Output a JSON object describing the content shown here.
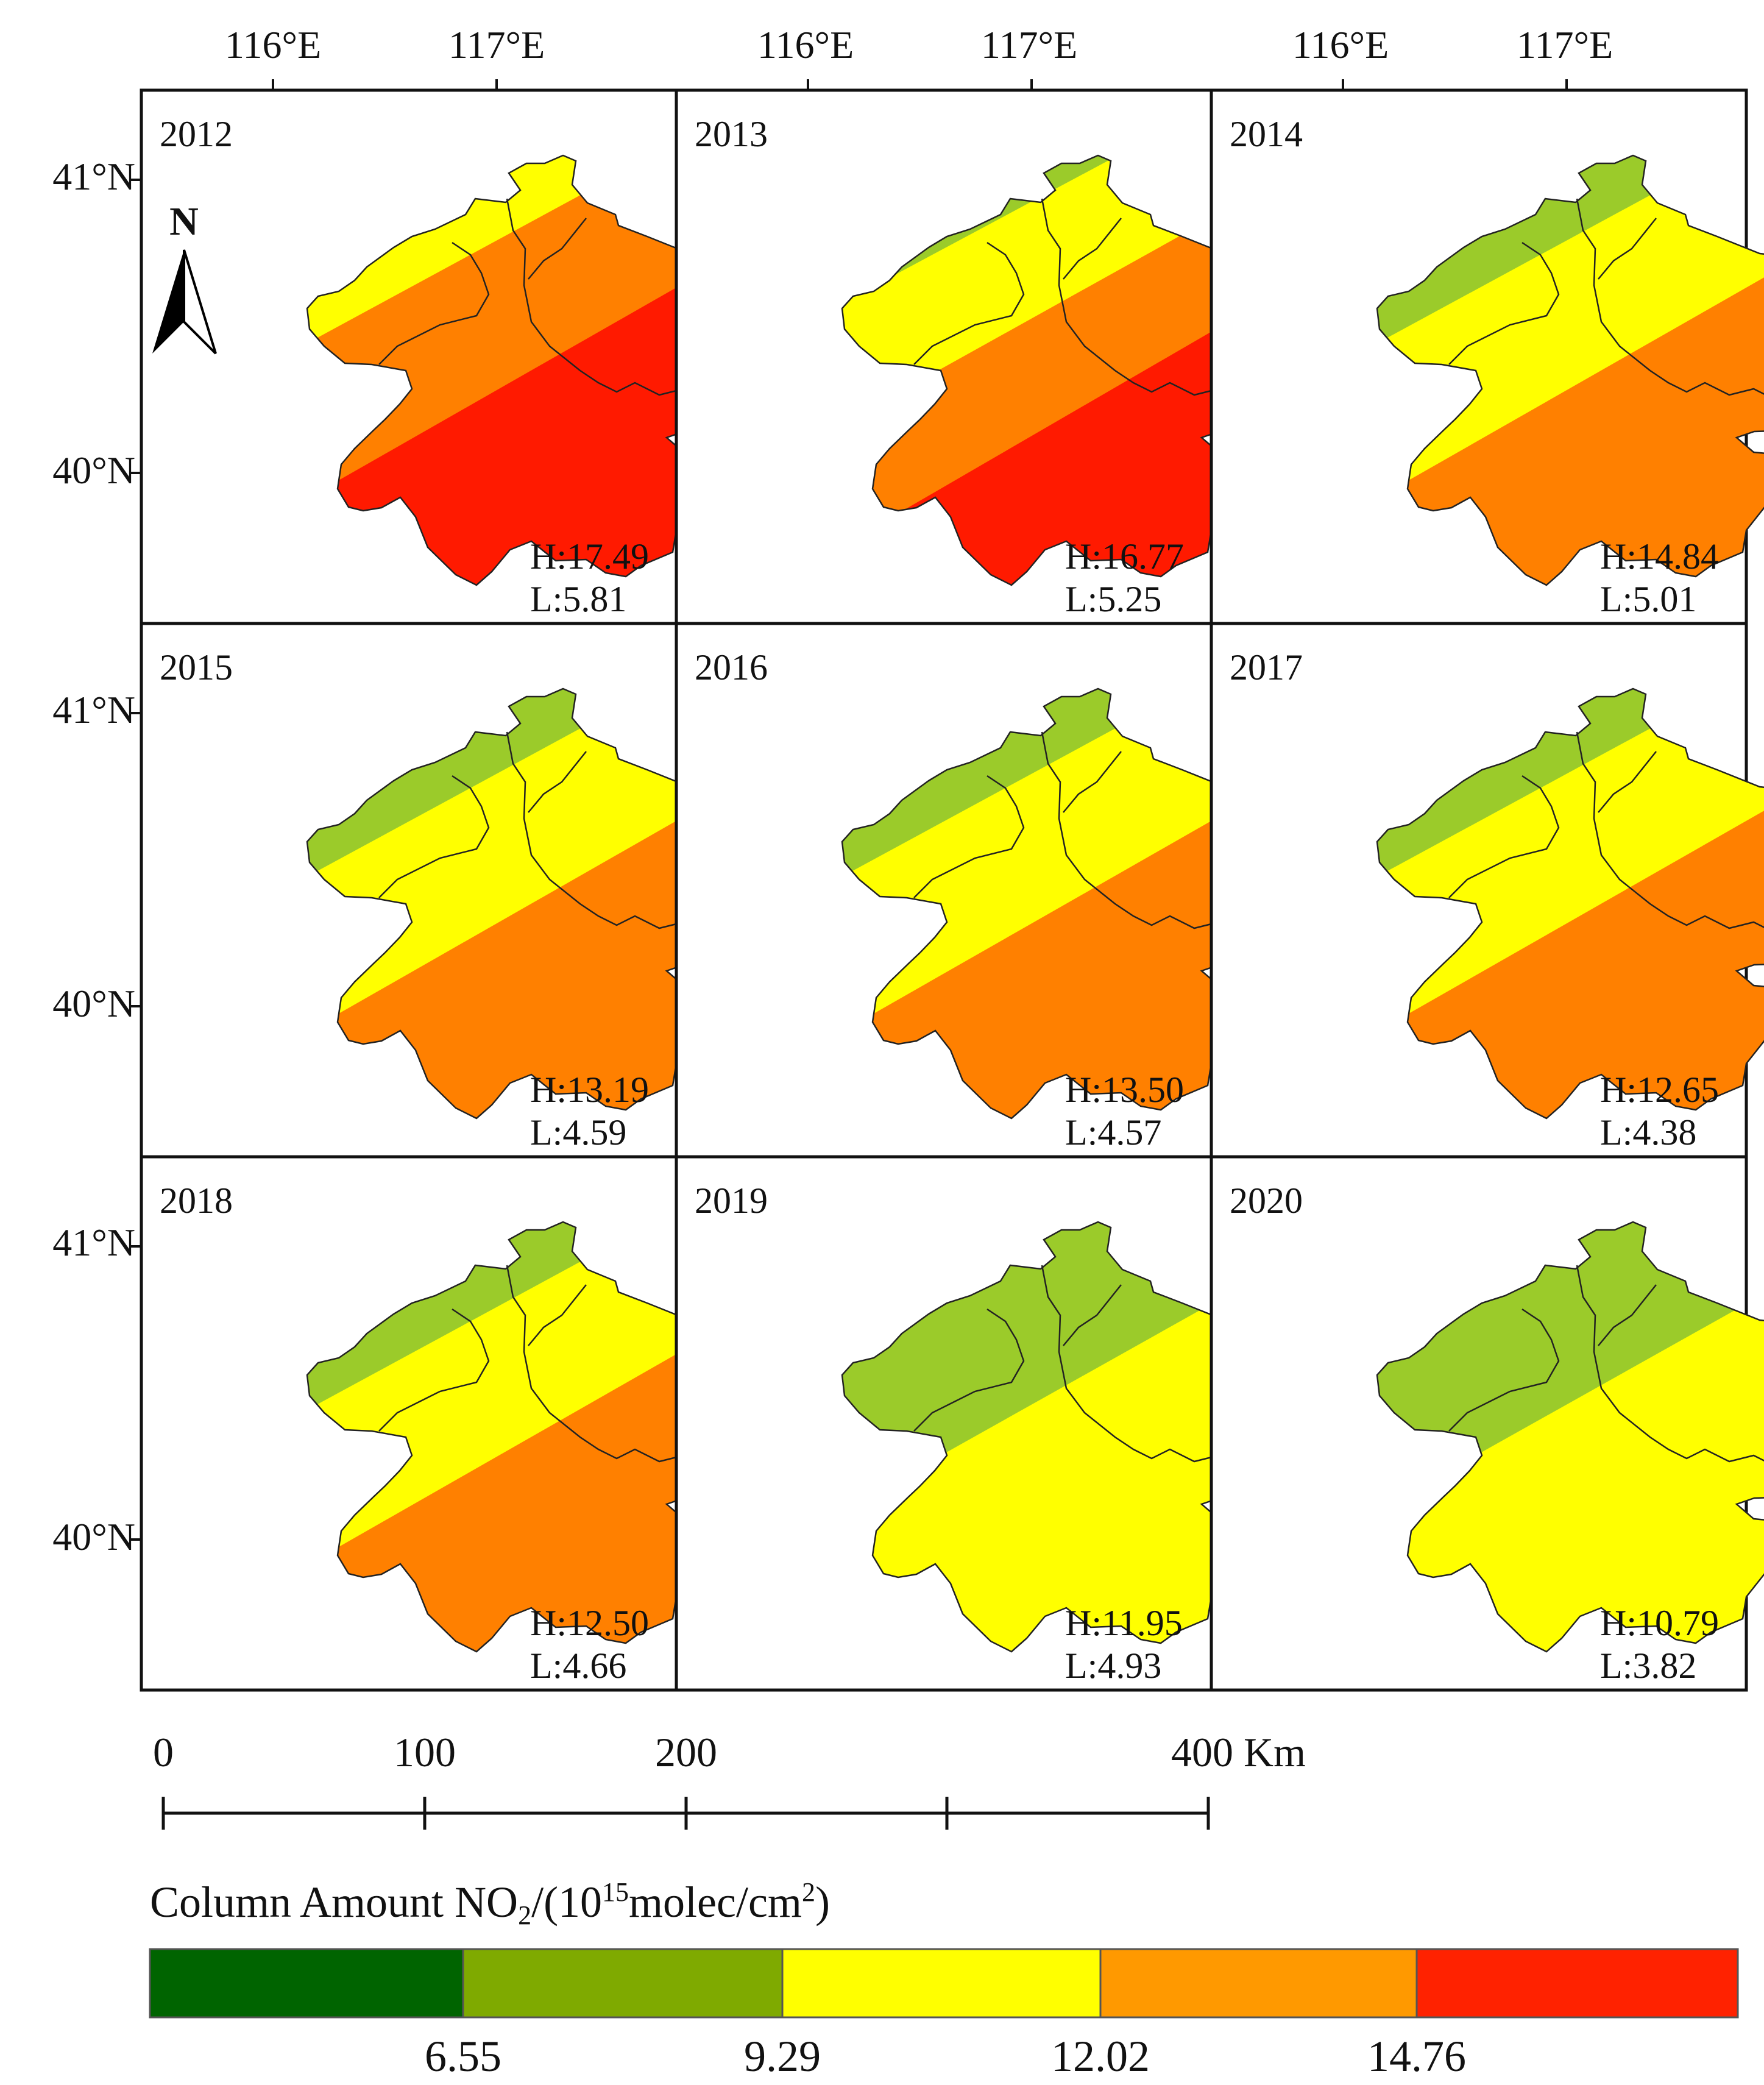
{
  "figure": {
    "lon_labels": [
      "116°E",
      "117°E"
    ],
    "lat_labels": [
      "41°N",
      "40°N"
    ],
    "north_arrow_label": "N",
    "panels": [
      {
        "year": "2012",
        "high": "H:17.49",
        "low": "L:5.81",
        "bands": [
          "#9BCB2A",
          "#FFFF00",
          "#FF8000",
          "#FF1A00"
        ]
      },
      {
        "year": "2013",
        "high": "H:16.77",
        "low": "L:5.25",
        "bands": [
          "#4FA51E",
          "#9BCB2A",
          "#FFFF00",
          "#FF8000",
          "#FF1A00"
        ]
      },
      {
        "year": "2014",
        "high": "H:14.84",
        "low": "L:5.01",
        "bands": [
          "#4FA51E",
          "#9BCB2A",
          "#FFFF00",
          "#FF8000"
        ]
      },
      {
        "year": "2015",
        "high": "H:13.19",
        "low": "L:4.59",
        "bands": [
          "#4FA51E",
          "#9BCB2A",
          "#FFFF00",
          "#FF8000"
        ]
      },
      {
        "year": "2016",
        "high": "H:13.50",
        "low": "L:4.57",
        "bands": [
          "#4FA51E",
          "#9BCB2A",
          "#FFFF00",
          "#FF8000"
        ]
      },
      {
        "year": "2017",
        "high": "H:12.65",
        "low": "L:4.38",
        "bands": [
          "#4FA51E",
          "#9BCB2A",
          "#FFFF00",
          "#FF8000"
        ]
      },
      {
        "year": "2018",
        "high": "H:12.50",
        "low": "L:4.66",
        "bands": [
          "#4FA51E",
          "#9BCB2A",
          "#FFFF00",
          "#FF8000"
        ]
      },
      {
        "year": "2019",
        "high": "H:11.95",
        "low": "L:4.93",
        "bands": [
          "#4FA51E",
          "#9BCB2A",
          "#FFFF00"
        ]
      },
      {
        "year": "2020",
        "high": "H:10.79",
        "low": "L:3.82",
        "bands": [
          "#3B9A14",
          "#9BCB2A",
          "#FFFF00"
        ]
      }
    ]
  },
  "scale_bar": {
    "ticks": [
      "0",
      "100",
      "200",
      "400 Km"
    ]
  },
  "legend": {
    "title_main": "Column Amount NO",
    "title_sub": "2",
    "title_mid": "/(10",
    "title_sup": "15",
    "title_unit": "molec/cm",
    "title_sup2": "2",
    "title_end": ")",
    "colors": [
      "#006400",
      "#7FAA00",
      "#FFFF00",
      "#FF9900",
      "#FF2200"
    ],
    "breaks": [
      "6.55",
      "9.29",
      "12.02",
      "14.76"
    ]
  }
}
